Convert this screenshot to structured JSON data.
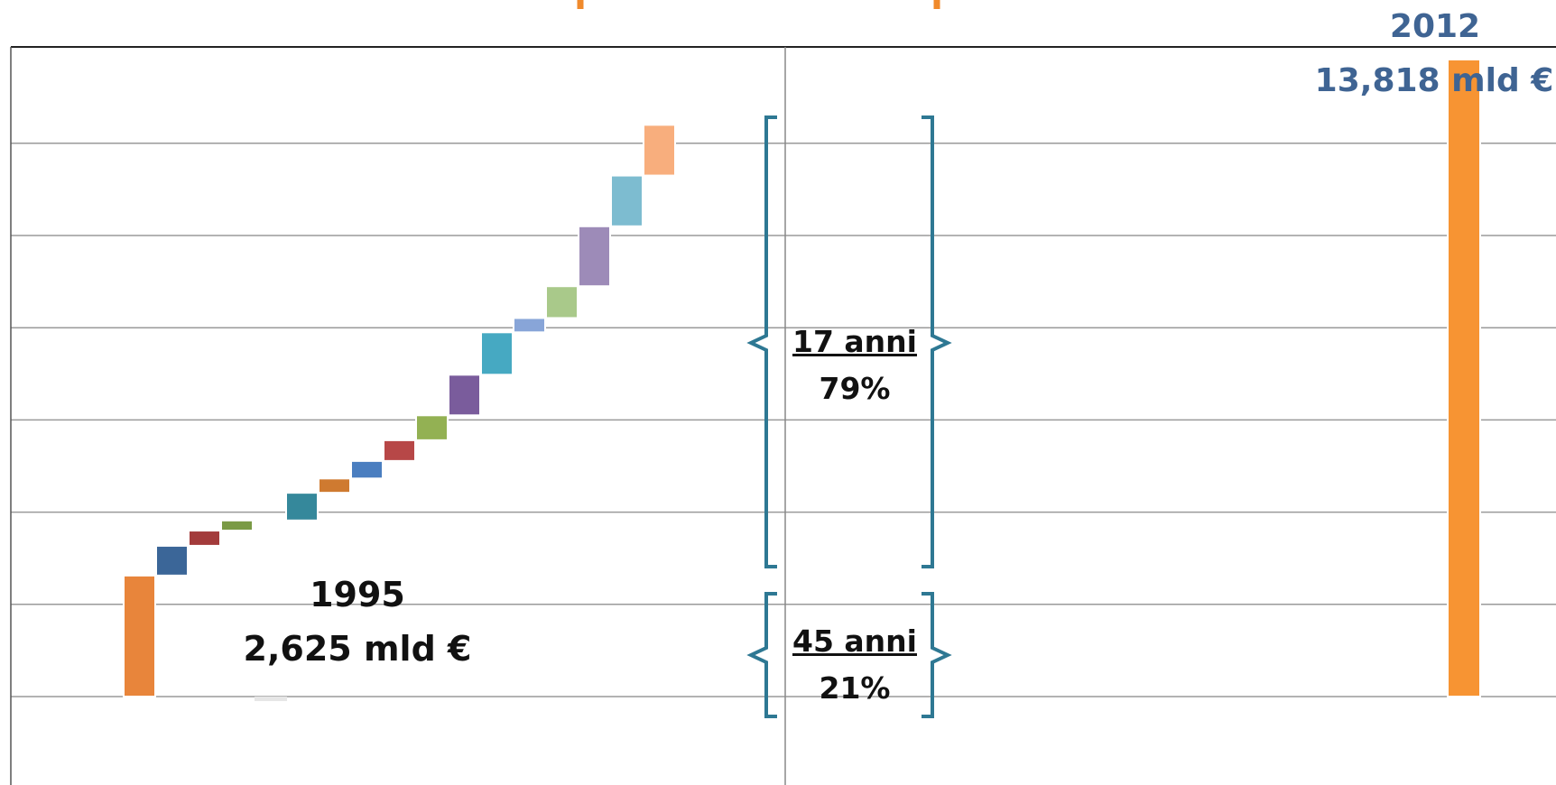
{
  "chart_data": {
    "type": "bar",
    "subtype": "waterfall",
    "unit": "mld €",
    "baseline": 0,
    "start": {
      "year": "1995",
      "value_label": "2,625 mld €",
      "value": 2.625
    },
    "end": {
      "year": "2012",
      "value_label": "13,818 mld €",
      "value": 13.818
    },
    "steps": [
      {
        "top": 3.27
      },
      {
        "top": 3.6
      },
      {
        "top": 3.82
      },
      {
        "top": 4.42
      },
      {
        "top": 4.73
      },
      {
        "top": 5.11
      },
      {
        "top": 5.56
      },
      {
        "top": 6.1
      },
      {
        "top": 6.98
      },
      {
        "top": 7.9
      },
      {
        "top": 8.21
      },
      {
        "top": 8.9
      },
      {
        "top": 10.2
      },
      {
        "top": 11.3
      },
      {
        "top": 12.4
      }
    ],
    "gridlines": [
      0,
      2,
      4,
      6,
      8,
      10,
      12
    ],
    "colors": {
      "start_bar": "#E8853B",
      "end_bar": "#F79433",
      "steps": [
        "#3B6698",
        "#A33B3B",
        "#7A9A45",
        "#35889B",
        "#CF7A30",
        "#4A7EC0",
        "#B74747",
        "#93B153",
        "#7A5C9C",
        "#46A9C2",
        "#88A5D8",
        "#A9C98A",
        "#9D8BB8",
        "#7DBCD0",
        "#F8AE7D"
      ],
      "brace": "#2E7893",
      "year_end": "#3F6493",
      "title": "#F08A2C"
    }
  },
  "annotations": {
    "recent": {
      "period": "17 anni",
      "share": "79%"
    },
    "earlier": {
      "period": "45 anni",
      "share": "21%"
    }
  }
}
